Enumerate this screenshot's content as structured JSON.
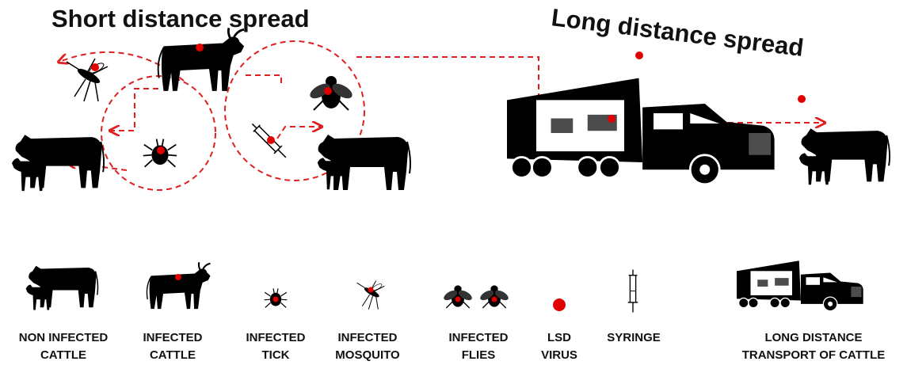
{
  "titles": {
    "short": "Short distance spread",
    "long": "Long distance spread"
  },
  "legend": [
    {
      "lines": [
        "NON INFECTED",
        "CATTLE"
      ]
    },
    {
      "lines": [
        "INFECTED",
        "CATTLE"
      ]
    },
    {
      "lines": [
        "INFECTED",
        "TICK"
      ]
    },
    {
      "lines": [
        "INFECTED",
        "MOSQUITO"
      ]
    },
    {
      "lines": [
        "INFECTED",
        "FLIES"
      ]
    },
    {
      "lines": [
        "LSD",
        "VIRUS"
      ]
    },
    {
      "lines": [
        "SYRINGE"
      ]
    },
    {
      "lines": [
        "LONG DISTANCE",
        "TRANSPORT OF CATTLE"
      ]
    }
  ]
}
